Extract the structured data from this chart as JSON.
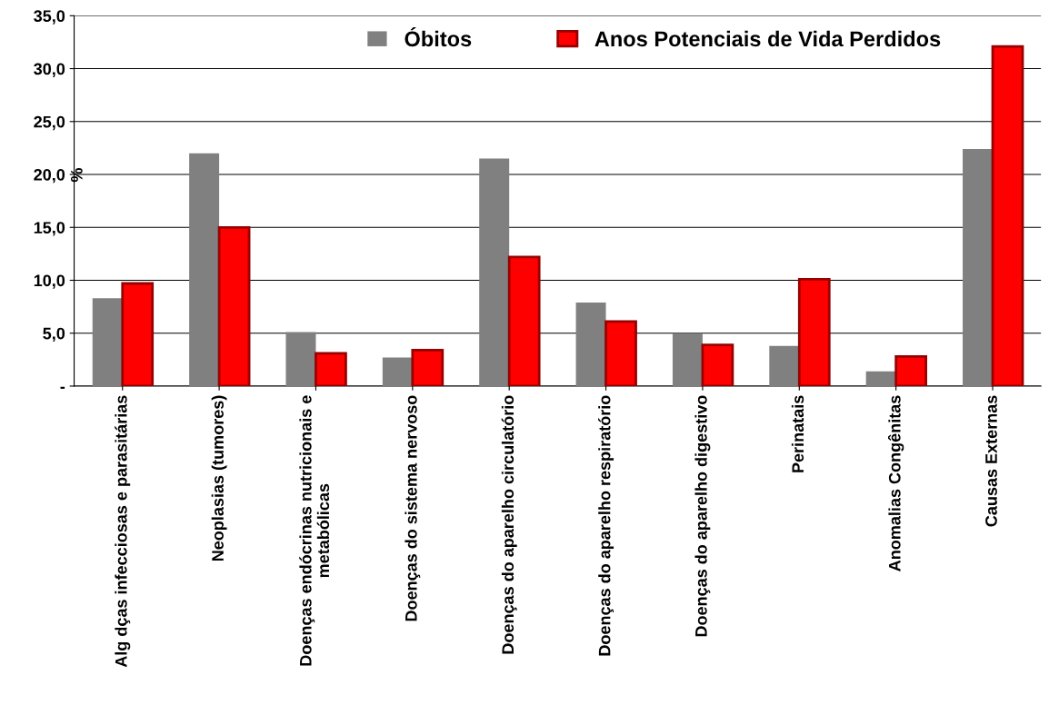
{
  "chart_data": {
    "type": "bar",
    "ylabel": "%",
    "categories": [
      "Alg dças infecciosas e parasitárias",
      "Neoplasias (tumores)",
      "Doenças endócrinas nutricionais e\nmetabólicas",
      "Doenças do sistema nervoso",
      "Doenças do aparelho circulatório",
      "Doenças do aparelho respiratório",
      "Doenças do aparelho digestivo",
      "Perinatais",
      "Anomalias Congênitas",
      "Causas Externas"
    ],
    "series": [
      {
        "name": "Óbitos",
        "color": "#808080",
        "values": [
          8.3,
          22.0,
          5.1,
          2.7,
          21.5,
          7.9,
          5.0,
          3.8,
          1.4,
          22.4
        ]
      },
      {
        "name": "Anos Potenciais de Vida Perdidos",
        "color": "#ff0000",
        "values": [
          9.7,
          15.0,
          3.1,
          3.4,
          12.2,
          6.1,
          3.9,
          10.1,
          2.8,
          32.1
        ]
      }
    ],
    "ylim": [
      0,
      35
    ],
    "yticks": [
      {
        "value": 0,
        "label": "-"
      },
      {
        "value": 5,
        "label": "5,0"
      },
      {
        "value": 10,
        "label": "10,0"
      },
      {
        "value": 15,
        "label": "15,0"
      },
      {
        "value": 20,
        "label": "20,0"
      },
      {
        "value": 25,
        "label": "25,0"
      },
      {
        "value": 30,
        "label": "30,0"
      },
      {
        "value": 35,
        "label": "35,0"
      }
    ],
    "grid": "y",
    "legend": "top"
  }
}
